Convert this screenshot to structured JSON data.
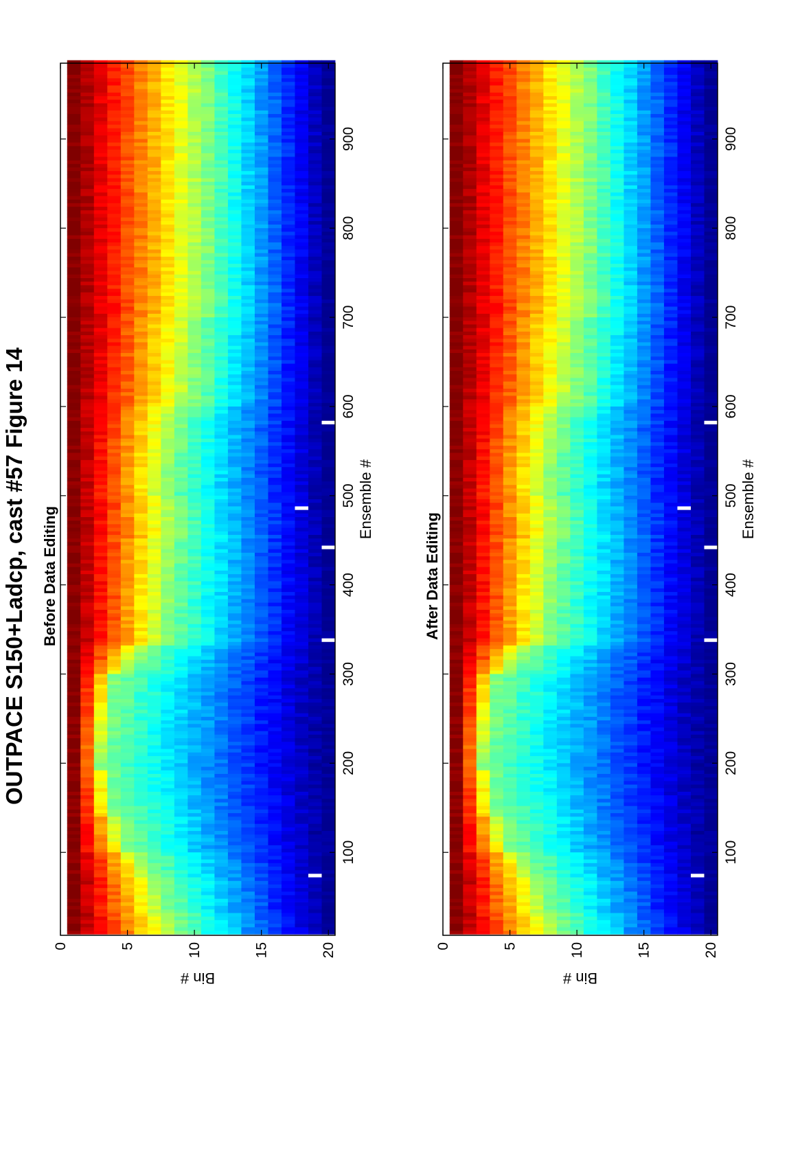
{
  "figure": {
    "title": "OUTPACE S150+Ladcp, cast #57  Figure 14"
  },
  "colors": {
    "jet_stops": [
      "#00008f",
      "#0000ff",
      "#0080ff",
      "#00ffff",
      "#80ff80",
      "#ffff00",
      "#ff8000",
      "#ff0000",
      "#800000"
    ],
    "missing": "#ffffff"
  },
  "chart_data": [
    {
      "type": "heatmap",
      "title": "Before Data Editing",
      "xlabel": "Ensemble #",
      "ylabel": "Bin #",
      "xlim": [
        7,
        985
      ],
      "ylim": [
        0,
        20.5
      ],
      "x_ticks": [
        100,
        200,
        300,
        400,
        500,
        600,
        700,
        800,
        900
      ],
      "y_ticks": [
        0,
        5,
        10,
        15,
        20
      ],
      "bins": 20,
      "ensembles": [
        8,
        984
      ],
      "colormap": "jet",
      "profile_segments": [
        {
          "x": [
            8,
            30
          ],
          "bin_of_mid_value": 9
        },
        {
          "x": [
            30,
            70
          ],
          "bin_of_mid_value": 8
        },
        {
          "x": [
            70,
            100
          ],
          "bin_of_mid_value": 7
        },
        {
          "x": [
            100,
            140
          ],
          "bin_of_mid_value": 5
        },
        {
          "x": [
            140,
            190
          ],
          "bin_of_mid_value": 4
        },
        {
          "x": [
            190,
            300
          ],
          "bin_of_mid_value": 3
        },
        {
          "x": [
            300,
            330
          ],
          "bin_of_mid_value": 5
        },
        {
          "x": [
            330,
            450
          ],
          "bin_of_mid_value": 8
        },
        {
          "x": [
            450,
            500
          ],
          "bin_of_mid_value": 9
        },
        {
          "x": [
            500,
            600
          ],
          "bin_of_mid_value": 8
        },
        {
          "x": [
            600,
            700
          ],
          "bin_of_mid_value": 10
        },
        {
          "x": [
            700,
            800
          ],
          "bin_of_mid_value": 11
        },
        {
          "x": [
            800,
            984
          ],
          "bin_of_mid_value": 11
        }
      ],
      "missing_data_bins": [
        18,
        20
      ]
    },
    {
      "type": "heatmap",
      "title": "After Data Editing",
      "xlabel": "Ensemble #",
      "ylabel": "Bin #",
      "xlim": [
        7,
        985
      ],
      "ylim": [
        0,
        20.5
      ],
      "x_ticks": [
        100,
        200,
        300,
        400,
        500,
        600,
        700,
        800,
        900
      ],
      "y_ticks": [
        0,
        5,
        10,
        15,
        20
      ],
      "bins": 20,
      "ensembles": [
        8,
        984
      ],
      "colormap": "jet",
      "profile_segments": [
        {
          "x": [
            8,
            30
          ],
          "bin_of_mid_value": 9
        },
        {
          "x": [
            30,
            70
          ],
          "bin_of_mid_value": 8
        },
        {
          "x": [
            70,
            100
          ],
          "bin_of_mid_value": 7
        },
        {
          "x": [
            100,
            140
          ],
          "bin_of_mid_value": 5
        },
        {
          "x": [
            140,
            190
          ],
          "bin_of_mid_value": 4
        },
        {
          "x": [
            190,
            300
          ],
          "bin_of_mid_value": 3
        },
        {
          "x": [
            300,
            330
          ],
          "bin_of_mid_value": 5
        },
        {
          "x": [
            330,
            450
          ],
          "bin_of_mid_value": 8
        },
        {
          "x": [
            450,
            500
          ],
          "bin_of_mid_value": 9
        },
        {
          "x": [
            500,
            600
          ],
          "bin_of_mid_value": 8
        },
        {
          "x": [
            600,
            700
          ],
          "bin_of_mid_value": 10
        },
        {
          "x": [
            700,
            800
          ],
          "bin_of_mid_value": 11
        },
        {
          "x": [
            800,
            984
          ],
          "bin_of_mid_value": 11
        }
      ],
      "missing_data_bins": [
        18,
        20
      ]
    }
  ]
}
